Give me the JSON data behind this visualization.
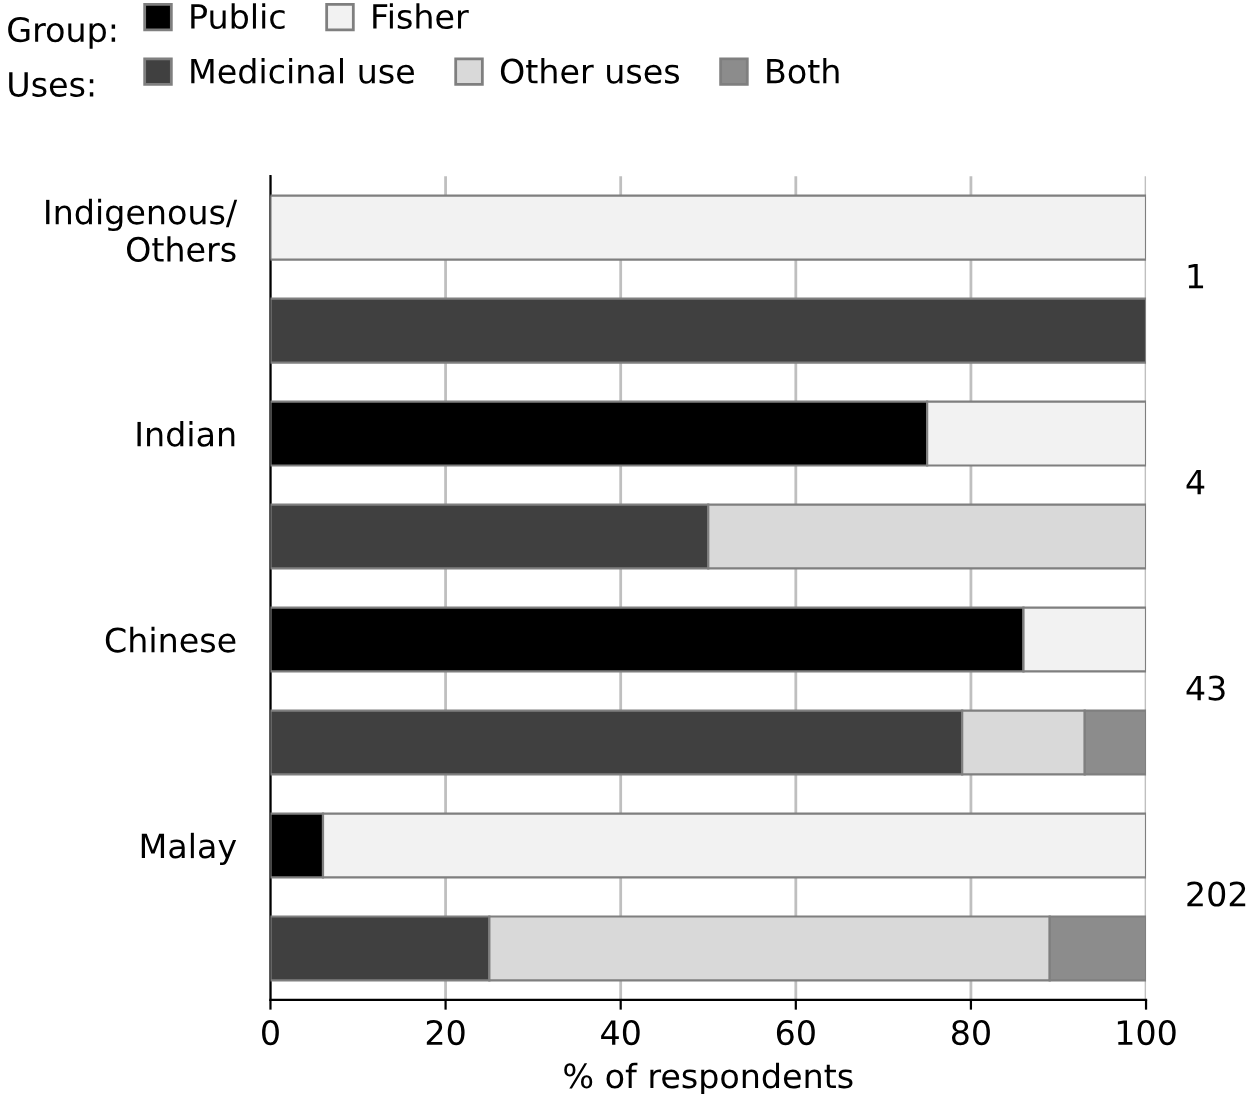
{
  "chart_data": {
    "type": "bar",
    "orientation": "horizontal",
    "stacked": true,
    "categories": [
      "Indigenous/\nOthers",
      null,
      "Indian",
      null,
      "Chinese",
      null,
      "Malay",
      null
    ],
    "series": [
      {
        "name": "Public",
        "color": "#000000",
        "values": [
          0,
          null,
          75,
          null,
          86,
          null,
          6,
          null
        ]
      },
      {
        "name": "Fisher",
        "color": "#f2f2f2",
        "values": [
          100,
          null,
          25,
          null,
          14,
          null,
          94,
          null
        ]
      },
      {
        "name": "Medicinal use",
        "color": "#404040",
        "values": [
          null,
          100,
          null,
          50,
          null,
          79,
          null,
          25
        ]
      },
      {
        "name": "Other uses",
        "color": "#d9d9d9",
        "values": [
          null,
          0,
          null,
          50,
          null,
          14,
          null,
          64
        ]
      },
      {
        "name": "Both",
        "color": "#8c8c8c",
        "values": [
          null,
          0,
          null,
          0,
          null,
          7,
          null,
          11
        ]
      }
    ],
    "legend_title": [
      "Group:",
      "Uses:"
    ],
    "legend": "top left",
    "annotations": [
      "1",
      "4",
      "43",
      "202"
    ],
    "xlabel": "% of respondents",
    "xlim": [
      0,
      100
    ],
    "xticks": [
      0,
      20,
      40,
      60,
      80,
      100
    ],
    "grid": "x"
  }
}
